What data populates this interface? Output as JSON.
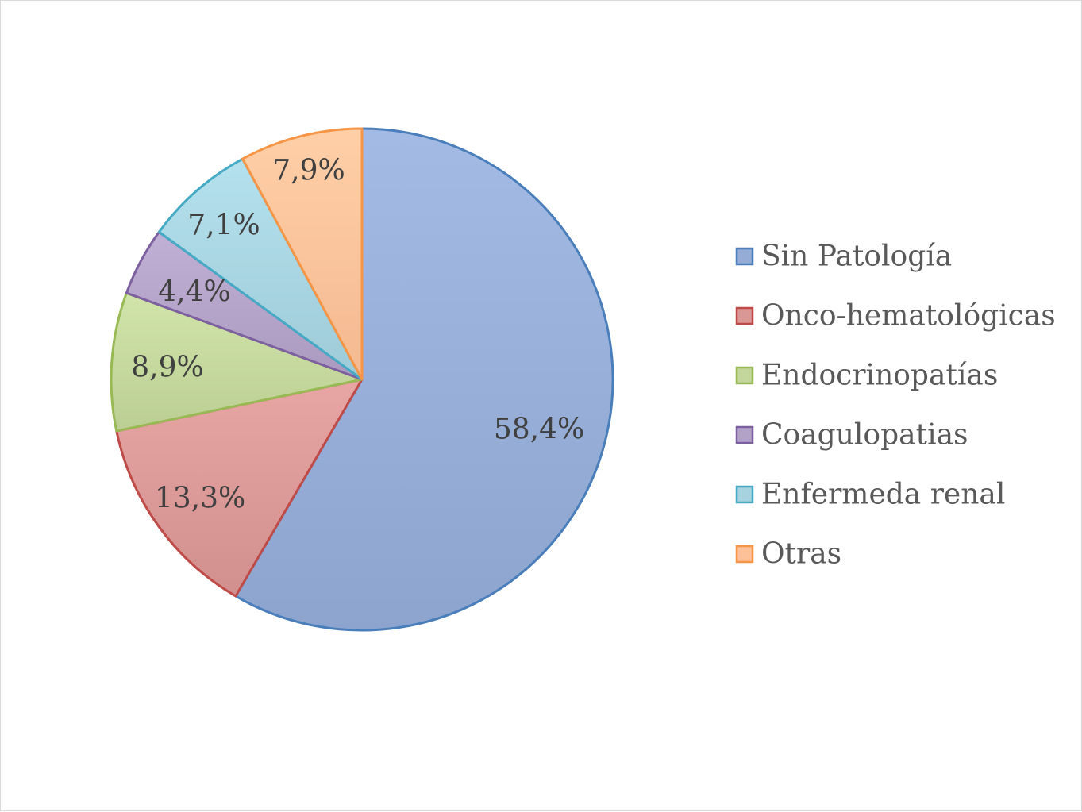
{
  "chart_data": {
    "type": "pie",
    "title": "",
    "start_angle_deg": 0,
    "direction": "clockwise",
    "legend_position": "right",
    "slices": [
      {
        "name": "Sin Patología",
        "value": 58.4,
        "label": "58,4%",
        "fill": "#95add6",
        "stroke": "#4a7ebb"
      },
      {
        "name": "Onco-hematológicas",
        "value": 13.3,
        "label": "13,3%",
        "fill": "#d99795",
        "stroke": "#be4b48"
      },
      {
        "name": "Endocrinopatías",
        "value": 8.9,
        "label": "8,9%",
        "fill": "#c3d69b",
        "stroke": "#98b954"
      },
      {
        "name": "Coagulopatias",
        "value": 4.4,
        "label": "4,4%",
        "fill": "#b3a2c7",
        "stroke": "#7d60a0"
      },
      {
        "name": "Enfermeda renal",
        "value": 7.1,
        "label": "7,1%",
        "fill": "#a6d3df",
        "stroke": "#46aac5"
      },
      {
        "name": "Otras",
        "value": 7.9,
        "label": "7,9%",
        "fill": "#fcc199",
        "stroke": "#f69545"
      }
    ]
  }
}
